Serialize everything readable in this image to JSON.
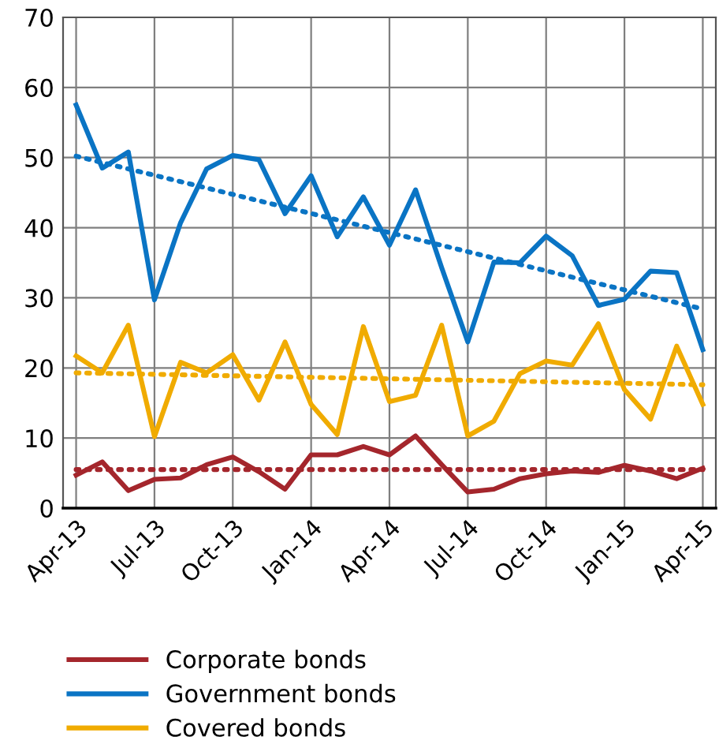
{
  "chart_data": {
    "type": "line",
    "categories": [
      "Apr-13",
      null,
      null,
      "Jul-13",
      null,
      null,
      "Oct-13",
      null,
      null,
      "Jan-14",
      null,
      null,
      "Apr-14",
      null,
      null,
      "Jul-14",
      null,
      null,
      "Oct-14",
      null,
      null,
      "Jan-15",
      null,
      null,
      "Apr-15"
    ],
    "series": [
      {
        "name": "Corporate bonds",
        "color": "#a4262c",
        "values": [
          4.7,
          6.6,
          2.5,
          4.1,
          4.3,
          6.2,
          7.3,
          5.2,
          2.7,
          7.6,
          7.6,
          8.8,
          7.6,
          10.3,
          6.2,
          2.3,
          2.7,
          4.2,
          4.9,
          5.3,
          5.1,
          6.1,
          5.3,
          4.2,
          5.7
        ]
      },
      {
        "name": "Government bonds",
        "color": "#0a74c4",
        "values": [
          57.5,
          48.5,
          50.8,
          29.7,
          40.7,
          48.4,
          50.3,
          49.7,
          42.0,
          47.4,
          38.7,
          44.4,
          37.5,
          45.4,
          34.3,
          23.7,
          35.1,
          35.0,
          38.8,
          36.0,
          28.9,
          29.8,
          33.8,
          33.6,
          22.6
        ]
      },
      {
        "name": "Covered bonds",
        "color": "#f0ab00",
        "values": [
          21.7,
          19.3,
          26.1,
          10.2,
          20.8,
          19.3,
          21.9,
          15.4,
          23.7,
          14.8,
          10.5,
          25.9,
          15.2,
          16.1,
          26.1,
          10.3,
          12.4,
          19.2,
          21.0,
          20.4,
          26.3,
          16.9,
          12.7,
          23.1,
          14.8
        ]
      },
      {
        "color": "#a4262c",
        "line_style": "dotted",
        "x": [
          "Apr-13",
          "Apr-15"
        ],
        "values": [
          5.5,
          5.5
        ]
      },
      {
        "color": "#0a74c4",
        "line_style": "dotted",
        "x": [
          "Apr-13",
          "Apr-15"
        ],
        "values": [
          50.2,
          28.4
        ]
      },
      {
        "color": "#f0ab00",
        "line_style": "dotted",
        "x": [
          "Apr-13",
          "Apr-15"
        ],
        "values": [
          19.3,
          17.6
        ]
      }
    ],
    "ylim": [
      0,
      70
    ],
    "yticks": [
      0,
      10,
      20,
      30,
      40,
      50,
      60,
      70
    ],
    "grid": true,
    "legend": "bottom",
    "line_style": "solid",
    "marker": "none"
  }
}
